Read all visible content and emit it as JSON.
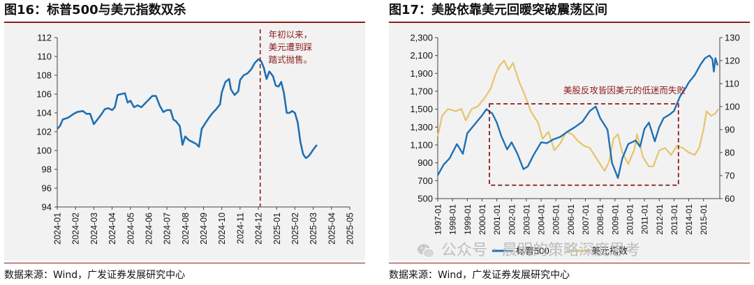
{
  "left": {
    "title": "图16：标普500与美元指数双杀",
    "source": "数据来源：Wind，广发证券发展研究中心",
    "annotation": [
      "年初以来，",
      "美元遭到踩",
      "踏式抛售。"
    ]
  },
  "right": {
    "title": "图17：美股依靠美元回暖突破震荡区间",
    "source": "数据来源：Wind，广发证券发展研究中心",
    "annotation": "美股反攻皆因美元的低迷而失败",
    "legend": [
      "标普500",
      "美元指数"
    ]
  },
  "watermark": "公众号 · 晨明的策略深度思考",
  "colors": {
    "blue": "#1f6fb2",
    "gold": "#e5c46b",
    "annotation_red": "#8a1a1a",
    "bg": "#f2f2f2"
  },
  "chart_data": [
    {
      "type": "line",
      "title": "图16：标普500与美元指数双杀",
      "xlabel": "",
      "ylabel": "",
      "categories": [
        "2024-01",
        "2024-02",
        "2024-03",
        "2024-04",
        "2024-05",
        "2024-06",
        "2024-07",
        "2024-08",
        "2024-09",
        "2024-10",
        "2024-11",
        "2024-12",
        "2025-01",
        "2025-02",
        "2025-03",
        "2025-04",
        "2025-05"
      ],
      "ylim": [
        94,
        112
      ],
      "yticks": [
        94,
        96,
        98,
        100,
        102,
        104,
        106,
        108,
        110,
        112
      ],
      "grid": false,
      "series": [
        {
          "values": [
            [
              0.0,
              102.3
            ],
            [
              0.15,
              102.6
            ],
            [
              0.3,
              103.3
            ],
            [
              0.6,
              103.5
            ],
            [
              0.9,
              103.9
            ],
            [
              1.1,
              104.1
            ],
            [
              1.4,
              104.2
            ],
            [
              1.6,
              103.9
            ],
            [
              1.8,
              103.9
            ],
            [
              2.0,
              102.8
            ],
            [
              2.2,
              103.3
            ],
            [
              2.4,
              103.8
            ],
            [
              2.6,
              104.4
            ],
            [
              2.8,
              104.5
            ],
            [
              3.0,
              104.3
            ],
            [
              3.15,
              104.6
            ],
            [
              3.3,
              105.9
            ],
            [
              3.5,
              106.0
            ],
            [
              3.7,
              106.1
            ],
            [
              3.85,
              105.1
            ],
            [
              4.0,
              105.3
            ],
            [
              4.2,
              104.6
            ],
            [
              4.4,
              104.8
            ],
            [
              4.6,
              104.6
            ],
            [
              4.8,
              105.0
            ],
            [
              5.0,
              105.4
            ],
            [
              5.2,
              105.8
            ],
            [
              5.4,
              105.8
            ],
            [
              5.6,
              104.8
            ],
            [
              5.8,
              104.1
            ],
            [
              6.0,
              104.3
            ],
            [
              6.2,
              104.3
            ],
            [
              6.35,
              103.3
            ],
            [
              6.5,
              103.1
            ],
            [
              6.7,
              102.6
            ],
            [
              6.85,
              100.6
            ],
            [
              7.0,
              101.5
            ],
            [
              7.2,
              101.1
            ],
            [
              7.4,
              100.9
            ],
            [
              7.6,
              100.7
            ],
            [
              7.75,
              100.4
            ],
            [
              7.9,
              102.3
            ],
            [
              8.1,
              102.9
            ],
            [
              8.3,
              103.5
            ],
            [
              8.5,
              104.0
            ],
            [
              8.7,
              104.4
            ],
            [
              8.9,
              104.9
            ],
            [
              9.0,
              106.2
            ],
            [
              9.2,
              107.3
            ],
            [
              9.4,
              107.6
            ],
            [
              9.5,
              106.5
            ],
            [
              9.7,
              105.9
            ],
            [
              9.9,
              106.3
            ],
            [
              10.0,
              107.5
            ],
            [
              10.2,
              108.0
            ],
            [
              10.4,
              108.2
            ],
            [
              10.6,
              108.6
            ],
            [
              10.8,
              109.3
            ],
            [
              11.0,
              109.7
            ],
            [
              11.15,
              109.5
            ],
            [
              11.3,
              108.8
            ],
            [
              11.45,
              107.6
            ],
            [
              11.6,
              108.4
            ],
            [
              11.8,
              107.9
            ],
            [
              11.95,
              106.9
            ],
            [
              12.1,
              106.8
            ],
            [
              12.25,
              107.3
            ],
            [
              12.4,
              106.1
            ],
            [
              12.55,
              104.0
            ],
            [
              12.7,
              104.0
            ],
            [
              12.85,
              104.2
            ],
            [
              13.0,
              104.0
            ],
            [
              13.15,
              103.0
            ],
            [
              13.3,
              100.9
            ],
            [
              13.45,
              99.6
            ],
            [
              13.6,
              99.2
            ],
            [
              13.75,
              99.4
            ],
            [
              13.9,
              99.8
            ],
            [
              14.0,
              100.1
            ],
            [
              14.2,
              100.6
            ]
          ]
        }
      ],
      "annotation": {
        "text": "年初以来，美元遭到踩踏式抛售。",
        "x": 11.1
      }
    },
    {
      "type": "line",
      "title": "图17：美股依靠美元回暖突破震荡区间",
      "xlabel": "",
      "ylabel": "",
      "categories": [
        "1997-01",
        "1998-01",
        "1999-01",
        "2000-01",
        "2001-01",
        "2002-01",
        "2003-01",
        "2004-01",
        "2005-01",
        "2006-01",
        "2007-01",
        "2008-01",
        "2009-01",
        "2010-01",
        "2011-01",
        "2012-01",
        "2013-01",
        "2014-01",
        "2015-01"
      ],
      "ylim_left": [
        500,
        2300
      ],
      "yticks_left": [
        500,
        700,
        900,
        1100,
        1300,
        1500,
        1700,
        1900,
        2100,
        2300
      ],
      "ylim_right": [
        60,
        130
      ],
      "yticks_right": [
        60,
        70,
        80,
        90,
        100,
        110,
        120,
        130
      ],
      "grid": false,
      "legend_position": "bottom",
      "series": [
        {
          "name": "标普500",
          "axis": "left",
          "values": [
            [
              1997.0,
              760
            ],
            [
              1997.4,
              880
            ],
            [
              1997.8,
              950
            ],
            [
              1998.3,
              1110
            ],
            [
              1998.7,
              1000
            ],
            [
              1999.0,
              1230
            ],
            [
              1999.5,
              1330
            ],
            [
              2000.0,
              1430
            ],
            [
              2000.3,
              1500
            ],
            [
              2000.7,
              1450
            ],
            [
              2001.0,
              1350
            ],
            [
              2001.3,
              1200
            ],
            [
              2001.7,
              1050
            ],
            [
              2002.0,
              1130
            ],
            [
              2002.4,
              1000
            ],
            [
              2002.8,
              830
            ],
            [
              2003.1,
              860
            ],
            [
              2003.5,
              990
            ],
            [
              2004.0,
              1130
            ],
            [
              2004.4,
              1120
            ],
            [
              2004.8,
              1160
            ],
            [
              2005.3,
              1190
            ],
            [
              2005.8,
              1250
            ],
            [
              2006.3,
              1300
            ],
            [
              2006.8,
              1360
            ],
            [
              2007.3,
              1480
            ],
            [
              2007.7,
              1530
            ],
            [
              2008.0,
              1400
            ],
            [
              2008.5,
              1270
            ],
            [
              2008.8,
              900
            ],
            [
              2009.2,
              730
            ],
            [
              2009.5,
              950
            ],
            [
              2009.9,
              1110
            ],
            [
              2010.4,
              1150
            ],
            [
              2010.7,
              1080
            ],
            [
              2011.0,
              1280
            ],
            [
              2011.3,
              1350
            ],
            [
              2011.7,
              1140
            ],
            [
              2012.0,
              1300
            ],
            [
              2012.3,
              1400
            ],
            [
              2012.7,
              1440
            ],
            [
              2013.0,
              1480
            ],
            [
              2013.4,
              1640
            ],
            [
              2013.8,
              1740
            ],
            [
              2014.0,
              1800
            ],
            [
              2014.4,
              1880
            ],
            [
              2014.8,
              2000
            ],
            [
              2015.1,
              2070
            ],
            [
              2015.4,
              2100
            ],
            [
              2015.6,
              2060
            ],
            [
              2015.7,
              1920
            ],
            [
              2015.8,
              2070
            ],
            [
              2015.95,
              1990
            ]
          ]
        },
        {
          "name": "美元指数",
          "axis": "right",
          "values": [
            [
              1997.0,
              87
            ],
            [
              1997.3,
              96
            ],
            [
              1997.7,
              99
            ],
            [
              1998.2,
              98
            ],
            [
              1998.6,
              99
            ],
            [
              1998.9,
              94
            ],
            [
              1999.3,
              99
            ],
            [
              1999.7,
              100
            ],
            [
              2000.2,
              104
            ],
            [
              2000.6,
              108
            ],
            [
              2000.9,
              114
            ],
            [
              2001.2,
              118
            ],
            [
              2001.5,
              120
            ],
            [
              2001.8,
              116
            ],
            [
              2002.1,
              119
            ],
            [
              2002.5,
              111
            ],
            [
              2002.9,
              105
            ],
            [
              2003.3,
              98
            ],
            [
              2003.8,
              93
            ],
            [
              2004.1,
              86
            ],
            [
              2004.5,
              89
            ],
            [
              2004.9,
              81
            ],
            [
              2005.3,
              84
            ],
            [
              2005.7,
              89
            ],
            [
              2006.1,
              88
            ],
            [
              2006.5,
              85
            ],
            [
              2006.9,
              83
            ],
            [
              2007.3,
              82
            ],
            [
              2007.7,
              78
            ],
            [
              2008.1,
              74
            ],
            [
              2008.3,
              72
            ],
            [
              2008.6,
              76
            ],
            [
              2008.9,
              86
            ],
            [
              2009.2,
              88
            ],
            [
              2009.5,
              80
            ],
            [
              2009.9,
              75
            ],
            [
              2010.3,
              81
            ],
            [
              2010.5,
              88
            ],
            [
              2010.9,
              78
            ],
            [
              2011.3,
              74
            ],
            [
              2011.6,
              74
            ],
            [
              2012.0,
              81
            ],
            [
              2012.4,
              82
            ],
            [
              2012.8,
              79
            ],
            [
              2013.2,
              83
            ],
            [
              2013.6,
              82
            ],
            [
              2014.0,
              80
            ],
            [
              2014.4,
              79
            ],
            [
              2014.7,
              82
            ],
            [
              2015.0,
              90
            ],
            [
              2015.2,
              98
            ],
            [
              2015.5,
              96
            ],
            [
              2015.8,
              97
            ],
            [
              2016.0,
              99
            ]
          ]
        }
      ],
      "annotation_box": {
        "label": "美股反攻皆因美元的低迷而失败",
        "x_range": [
          2000.5,
          2013.3
        ],
        "y_range": [
          650,
          1560
        ]
      }
    }
  ]
}
